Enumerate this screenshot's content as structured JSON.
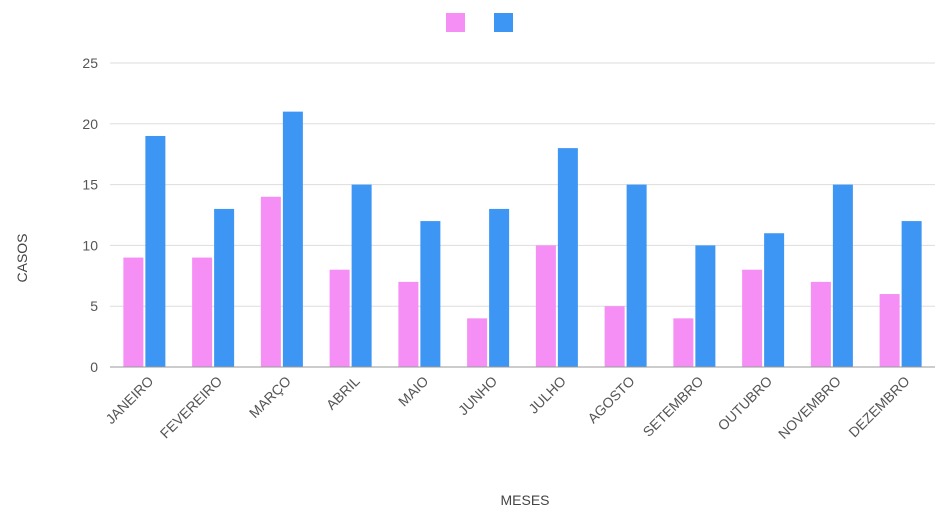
{
  "chart_data": {
    "type": "bar",
    "title": "",
    "xlabel": "MESES",
    "ylabel": "CASOS",
    "ylim": [
      0,
      25
    ],
    "yticks": [
      0,
      5,
      10,
      15,
      20,
      25
    ],
    "grid": true,
    "legend_position": "top",
    "categories": [
      "JANEIRO",
      "FEVEREIRO",
      "MARÇO",
      "ABRIL",
      "MAIO",
      "JUNHO",
      "JULHO",
      "AGOSTO",
      "SETEMBRO",
      "OUTUBRO",
      "NOVEMBRO",
      "DEZEMBRO"
    ],
    "series": [
      {
        "color": "#f58ef5",
        "values": [
          9,
          9,
          14,
          8,
          7,
          4,
          10,
          5,
          4,
          8,
          7,
          6
        ]
      },
      {
        "color": "#3d95f4",
        "values": [
          19,
          13,
          21,
          15,
          12,
          13,
          18,
          15,
          10,
          11,
          15,
          12
        ]
      }
    ]
  }
}
